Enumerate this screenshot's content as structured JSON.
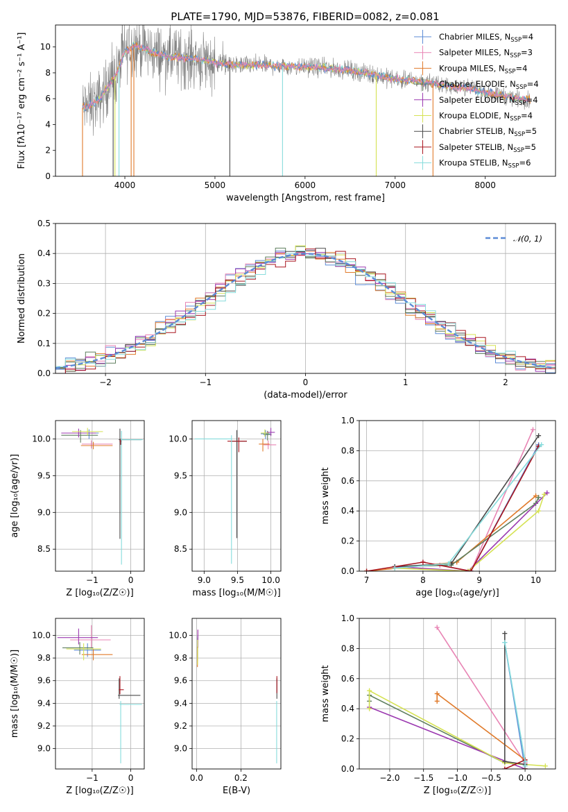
{
  "title": "PLATE=1790, MJD=53876, FIBERID=0082, z=0.081",
  "colors": {
    "series": [
      "#5b8bd6",
      "#e884b4",
      "#e07a2a",
      "#5f7f5f",
      "#9b39b0",
      "#d5e253",
      "#4a4a4a",
      "#a8141e",
      "#86dcdc"
    ],
    "data_spectrum": "#808080",
    "normal_curve": "#5b8bd6",
    "grid": "#b0b0b0"
  },
  "legend_spectrum": [
    {
      "base": "Chabrier MILES, N",
      "sub": "SSP",
      "tail": "=4"
    },
    {
      "base": "Salpeter MILES, N",
      "sub": "SSP",
      "tail": "=3"
    },
    {
      "base": "Kroupa MILES, N",
      "sub": "SSP",
      "tail": "=4"
    },
    {
      "base": "Chabrier ELODIE, N",
      "sub": "SSP",
      "tail": "=4"
    },
    {
      "base": "Salpeter ELODIE, N",
      "sub": "SSP",
      "tail": "=4"
    },
    {
      "base": "Kroupa ELODIE, N",
      "sub": "SSP",
      "tail": "=4"
    },
    {
      "base": "Chabrier STELIB, N",
      "sub": "SSP",
      "tail": "=5"
    },
    {
      "base": "Salpeter STELIB, N",
      "sub": "SSP",
      "tail": "=5"
    },
    {
      "base": "Kroupa STELIB, N",
      "sub": "SSP",
      "tail": "=6"
    }
  ],
  "legend_hist": "𝒩(0, 1)",
  "chart_data": [
    {
      "id": "spectrum",
      "type": "line",
      "xlabel": "wavelength [Angstrom, rest frame]",
      "ylabel": "Flux [fλ10⁻¹⁷ erg cm⁻² s⁻¹ A⁻¹]",
      "xlim": [
        3230,
        8780
      ],
      "ylim": [
        0,
        11.7
      ],
      "xticks": [
        4000,
        5000,
        6000,
        7000,
        8000
      ],
      "yticks": [
        0,
        2,
        4,
        6,
        8,
        10
      ],
      "continuum": [
        [
          3530,
          5.3
        ],
        [
          3700,
          5.8
        ],
        [
          3900,
          7.8
        ],
        [
          4000,
          9.6
        ],
        [
          4100,
          10.2
        ],
        [
          4300,
          9.6
        ],
        [
          4500,
          9.2
        ],
        [
          4800,
          9.1
        ],
        [
          5000,
          8.8
        ],
        [
          5200,
          8.6
        ],
        [
          5500,
          8.6
        ],
        [
          5800,
          8.5
        ],
        [
          6000,
          8.5
        ],
        [
          6500,
          8.2
        ],
        [
          6800,
          7.8
        ],
        [
          7000,
          7.5
        ],
        [
          7200,
          7.4
        ],
        [
          7500,
          7.1
        ],
        [
          7800,
          6.8
        ],
        [
          8000,
          6.5
        ],
        [
          8300,
          6.1
        ],
        [
          8500,
          5.9
        ]
      ],
      "drops": [
        3530,
        3870,
        3890,
        3935,
        4070,
        4100,
        5165,
        5750,
        6790,
        7420
      ],
      "grid": false
    },
    {
      "id": "residual_hist",
      "type": "step",
      "xlabel": "(data-model)/error",
      "ylabel": "Normed distribution",
      "xlim": [
        -2.5,
        2.5
      ],
      "ylim": [
        0,
        0.5
      ],
      "xticks": [
        -2,
        -1,
        0,
        1,
        2
      ],
      "yticks": [
        0.0,
        0.1,
        0.2,
        0.3,
        0.4,
        0.5
      ],
      "bin_width": 0.1,
      "normal": {
        "mean": 0,
        "sigma": 1
      },
      "grid": true
    },
    {
      "id": "age_vs_Z",
      "type": "errorbar",
      "xlabel": "Z [log₁₀(Z/Z☉)]",
      "ylabel": "age  [log₁₀(age/yr)]",
      "xlim": [
        -1.95,
        0.35
      ],
      "ylim": [
        8.2,
        10.25
      ],
      "xticks": [
        -1,
        0
      ],
      "yticks": [
        8.5,
        9.0,
        9.5,
        10.0
      ],
      "grid": true,
      "points": [
        {
          "s": 0,
          "x": -1.08,
          "y": 10.08,
          "xe": [
            0.25,
            0.25
          ],
          "ye": [
            0.08,
            0.05
          ]
        },
        {
          "s": 1,
          "x": -1.02,
          "y": 9.93,
          "xe": [
            0.25,
            0.55
          ],
          "ye": [
            0.06,
            0.05
          ]
        },
        {
          "s": 2,
          "x": -0.97,
          "y": 9.91,
          "xe": [
            0.32,
            0.5
          ],
          "ye": [
            0.05,
            0.05
          ]
        },
        {
          "s": 3,
          "x": -1.3,
          "y": 10.05,
          "xe": [
            0.5,
            0.45
          ],
          "ye": [
            0.1,
            0.07
          ]
        },
        {
          "s": 4,
          "x": -1.35,
          "y": 10.08,
          "xe": [
            0.45,
            0.45
          ],
          "ye": [
            0.06,
            0.06
          ]
        },
        {
          "s": 5,
          "x": -1.12,
          "y": 10.1,
          "xe": [
            0.4,
            0.4
          ],
          "ye": [
            0.05,
            0.05
          ]
        },
        {
          "s": 6,
          "x": -0.28,
          "y": 9.99,
          "xe": [
            0.03,
            0.55
          ],
          "ye": [
            1.35,
            0.15
          ]
        },
        {
          "s": 7,
          "x": -0.26,
          "y": 9.97,
          "xe": [
            0.03,
            0.03
          ],
          "ye": [
            0.05,
            0.03
          ]
        },
        {
          "s": 8,
          "x": -0.24,
          "y": 9.99,
          "xe": [
            0.02,
            0.55
          ],
          "ye": [
            1.7,
            0.12
          ]
        }
      ]
    },
    {
      "id": "age_vs_mass",
      "type": "errorbar",
      "xlabel": "mass [log₁₀(M/M☉)]",
      "ylabel": "",
      "xlim": [
        8.82,
        10.15
      ],
      "ylim": [
        8.2,
        10.25
      ],
      "xticks": [
        9.0,
        9.5,
        10.0
      ],
      "yticks": [
        8.5,
        9.0,
        9.5,
        10.0
      ],
      "grid": true,
      "points": [
        {
          "s": 0,
          "x": 9.92,
          "y": 10.07,
          "xe": [
            0.07,
            0.07
          ],
          "ye": [
            0.07,
            0.05
          ]
        },
        {
          "s": 1,
          "x": 9.96,
          "y": 9.92,
          "xe": [
            0.07,
            0.12
          ],
          "ye": [
            0.06,
            0.06
          ]
        },
        {
          "s": 2,
          "x": 9.88,
          "y": 9.93,
          "xe": [
            0.06,
            0.1
          ],
          "ye": [
            0.1,
            0.07
          ]
        },
        {
          "s": 3,
          "x": 9.95,
          "y": 10.06,
          "xe": [
            0.06,
            0.06
          ],
          "ye": [
            0.08,
            0.05
          ]
        },
        {
          "s": 4,
          "x": 10.0,
          "y": 10.09,
          "xe": [
            0.06,
            0.06
          ],
          "ye": [
            0.05,
            0.06
          ]
        },
        {
          "s": 5,
          "x": 9.91,
          "y": 10.08,
          "xe": [
            0.06,
            0.06
          ],
          "ye": [
            0.05,
            0.05
          ]
        },
        {
          "s": 6,
          "x": 9.49,
          "y": 9.97,
          "xe": [
            0.1,
            0.15
          ],
          "ye": [
            1.32,
            0.15
          ]
        },
        {
          "s": 7,
          "x": 9.52,
          "y": 9.97,
          "xe": [
            0.17,
            0.12
          ],
          "ye": [
            0.15,
            0.05
          ]
        },
        {
          "s": 8,
          "x": 9.41,
          "y": 10.0,
          "xe": [
            0.55,
            0.01
          ],
          "ye": [
            1.7,
            0.05
          ]
        }
      ]
    },
    {
      "id": "weight_vs_age",
      "type": "line",
      "xlabel": "age  [log₁₀(age/yr)]",
      "ylabel": "mass weight",
      "xlim": [
        6.87,
        10.35
      ],
      "ylim": [
        0,
        1.0
      ],
      "xticks": [
        7,
        8,
        9,
        10
      ],
      "yticks": [
        0.0,
        0.2,
        0.4,
        0.6,
        0.8,
        1.0
      ],
      "grid": true,
      "series": [
        {
          "s": 0,
          "x": [
            7.5,
            8.3,
            8.85,
            10.05
          ],
          "y": [
            0.03,
            0.04,
            0.0,
            0.84
          ]
        },
        {
          "s": 1,
          "x": [
            7.5,
            8.3,
            8.85,
            9.95
          ],
          "y": [
            0.03,
            0.04,
            0.0,
            0.94
          ]
        },
        {
          "s": 2,
          "x": [
            7.0,
            8.6,
            10.0
          ],
          "y": [
            0.0,
            0.06,
            0.5
          ]
        },
        {
          "s": 3,
          "x": [
            7.5,
            8.5,
            10.0,
            10.05
          ],
          "y": [
            0.03,
            0.04,
            0.45,
            0.49
          ]
        },
        {
          "s": 4,
          "x": [
            7.5,
            8.8,
            10.2
          ],
          "y": [
            0.03,
            0.0,
            0.52
          ]
        },
        {
          "s": 5,
          "x": [
            7.5,
            8.8,
            10.05,
            10.15
          ],
          "y": [
            0.02,
            0.0,
            0.4,
            0.51
          ]
        },
        {
          "s": 6,
          "x": [
            7.5,
            8.5,
            10.05
          ],
          "y": [
            0.03,
            0.05,
            0.9
          ]
        },
        {
          "s": 7,
          "x": [
            7.0,
            8.0,
            8.85,
            10.05
          ],
          "y": [
            0.0,
            0.06,
            0.0,
            0.83
          ]
        },
        {
          "s": 8,
          "x": [
            7.5,
            8.45,
            10.1
          ],
          "y": [
            0.02,
            0.05,
            0.84
          ]
        }
      ]
    },
    {
      "id": "mass_vs_Z",
      "type": "errorbar",
      "xlabel": "Z [log₁₀(Z/Z☉)]",
      "ylabel": "mass [log₁₀(M/M☉)]",
      "xlim": [
        -1.95,
        0.35
      ],
      "ylim": [
        8.82,
        10.15
      ],
      "xticks": [
        -1,
        0
      ],
      "yticks": [
        9.0,
        9.2,
        9.4,
        9.6,
        9.8,
        10.0
      ],
      "grid": true,
      "points": [
        {
          "s": 0,
          "x": -1.12,
          "y": 9.87,
          "xe": [
            0.35,
            0.35
          ],
          "ye": [
            0.06,
            0.06
          ]
        },
        {
          "s": 1,
          "x": -1.02,
          "y": 9.96,
          "xe": [
            0.55,
            0.5
          ],
          "ye": [
            0.07,
            0.13
          ]
        },
        {
          "s": 2,
          "x": -0.97,
          "y": 9.83,
          "xe": [
            0.3,
            0.5
          ],
          "ye": [
            0.05,
            0.05
          ]
        },
        {
          "s": 3,
          "x": -1.32,
          "y": 9.89,
          "xe": [
            0.45,
            0.35
          ],
          "ye": [
            0.06,
            0.05
          ]
        },
        {
          "s": 4,
          "x": -1.35,
          "y": 9.98,
          "xe": [
            0.55,
            0.5
          ],
          "ye": [
            0.06,
            0.08
          ]
        },
        {
          "s": 5,
          "x": -1.22,
          "y": 9.88,
          "xe": [
            0.45,
            0.45
          ],
          "ye": [
            0.1,
            0.05
          ]
        },
        {
          "s": 6,
          "x": -0.3,
          "y": 9.47,
          "xe": [
            0.03,
            0.55
          ],
          "ye": [
            0.03,
            0.15
          ]
        },
        {
          "s": 7,
          "x": -0.28,
          "y": 9.52,
          "xe": [
            0.03,
            0.1
          ],
          "ye": [
            0.04,
            0.12
          ]
        },
        {
          "s": 8,
          "x": -0.26,
          "y": 9.39,
          "xe": [
            0.03,
            0.55
          ],
          "ye": [
            0.52,
            0.03
          ]
        }
      ]
    },
    {
      "id": "mass_vs_EBV",
      "type": "errorbar",
      "xlabel": "E(B-V)",
      "ylabel": "",
      "xlim": [
        -0.02,
        0.38
      ],
      "ylim": [
        8.82,
        10.15
      ],
      "xticks": [
        0.0,
        0.2
      ],
      "yticks": [
        9.0,
        9.2,
        9.4,
        9.6,
        9.8,
        10.0
      ],
      "grid": true,
      "points": [
        {
          "s": 0,
          "x": 0.005,
          "y": 9.9,
          "xe": [
            0,
            0
          ],
          "ye": [
            0.1,
            0.1
          ]
        },
        {
          "s": 1,
          "x": 0.006,
          "y": 9.97,
          "xe": [
            0,
            0
          ],
          "ye": [
            0.08,
            0.08
          ]
        },
        {
          "s": 2,
          "x": 0.004,
          "y": 9.82,
          "xe": [
            0,
            0
          ],
          "ye": [
            0.1,
            0.08
          ]
        },
        {
          "s": 3,
          "x": 0.005,
          "y": 9.88,
          "xe": [
            0,
            0
          ],
          "ye": [
            0.1,
            0.1
          ]
        },
        {
          "s": 4,
          "x": 0.006,
          "y": 9.97,
          "xe": [
            0,
            0
          ],
          "ye": [
            0.08,
            0.08
          ]
        },
        {
          "s": 5,
          "x": 0.005,
          "y": 9.86,
          "xe": [
            0,
            0
          ],
          "ye": [
            0.12,
            0.1
          ]
        },
        {
          "s": 6,
          "x": 0.362,
          "y": 9.47,
          "xe": [
            0,
            0
          ],
          "ye": [
            0.03,
            0.15
          ]
        },
        {
          "s": 7,
          "x": 0.362,
          "y": 9.54,
          "xe": [
            0,
            0
          ],
          "ye": [
            0.05,
            0.1
          ]
        },
        {
          "s": 8,
          "x": 0.361,
          "y": 9.39,
          "xe": [
            0,
            0
          ],
          "ye": [
            0.52,
            0.03
          ]
        }
      ]
    },
    {
      "id": "weight_vs_Z",
      "type": "line",
      "xlabel": "Z [log₁₀(Z/Z☉)]",
      "ylabel": "mass weight",
      "xlim": [
        -2.45,
        0.45
      ],
      "ylim": [
        0,
        1.0
      ],
      "xticks": [
        -2.0,
        -1.5,
        -1.0,
        -0.5,
        0.0
      ],
      "yticks": [
        0.0,
        0.2,
        0.4,
        0.6,
        0.8,
        1.0
      ],
      "grid": true,
      "series": [
        {
          "s": 0,
          "x": [
            -0.3,
            0.0,
            0.0
          ],
          "y": [
            0.84,
            0.0,
            0.03
          ]
        },
        {
          "s": 1,
          "x": [
            -1.3,
            0.0,
            0.0
          ],
          "y": [
            0.94,
            0.04,
            0.0
          ]
        },
        {
          "s": 2,
          "x": [
            -1.3,
            -1.3,
            0.0,
            0.0
          ],
          "y": [
            0.45,
            0.5,
            0.06,
            0.0
          ]
        },
        {
          "s": 3,
          "x": [
            -2.3,
            -2.3,
            -0.3,
            0.0
          ],
          "y": [
            0.45,
            0.49,
            0.04,
            0.03
          ]
        },
        {
          "s": 4,
          "x": [
            -2.3,
            0.0,
            0.0
          ],
          "y": [
            0.41,
            0.0,
            0.05
          ]
        },
        {
          "s": 5,
          "x": [
            -2.3,
            -2.3,
            -0.3,
            0.3
          ],
          "y": [
            0.4,
            0.52,
            0.04,
            0.02
          ]
        },
        {
          "s": 6,
          "x": [
            -0.3,
            -0.3,
            0.0
          ],
          "y": [
            0.9,
            0.05,
            0.03
          ]
        },
        {
          "s": 7,
          "x": [
            -0.3,
            0.0,
            0.0
          ],
          "y": [
            0.0,
            0.06,
            0.0
          ]
        },
        {
          "s": 8,
          "x": [
            -0.3,
            0.0,
            0.0
          ],
          "y": [
            0.84,
            0.05,
            0.02
          ]
        }
      ]
    }
  ]
}
